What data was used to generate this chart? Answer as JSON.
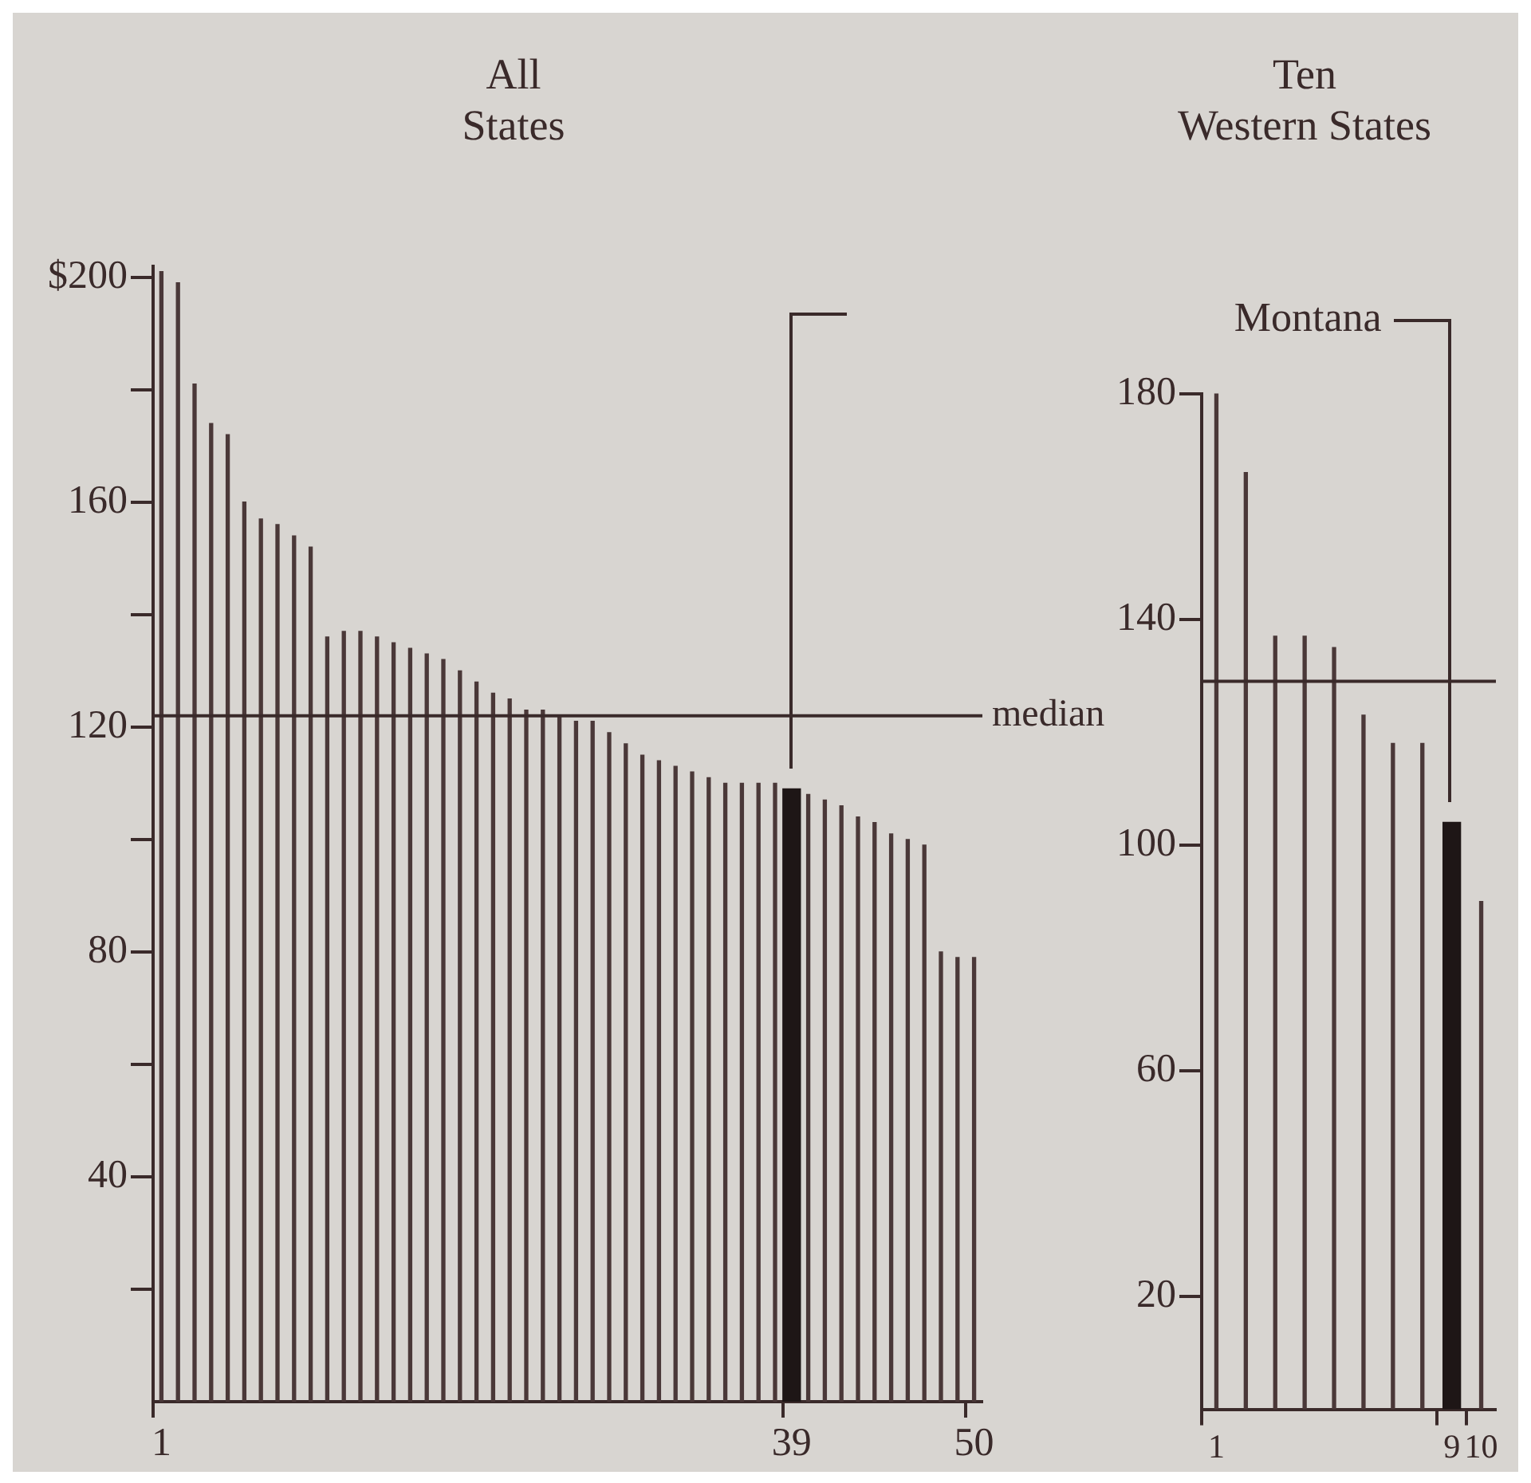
{
  "chart_data": [
    {
      "type": "bar",
      "title": "All\nStates",
      "categories": [
        "1",
        null,
        null,
        null,
        null,
        null,
        null,
        null,
        null,
        null,
        null,
        null,
        null,
        null,
        null,
        null,
        null,
        null,
        null,
        null,
        null,
        null,
        null,
        null,
        null,
        null,
        null,
        null,
        null,
        null,
        null,
        null,
        null,
        null,
        null,
        null,
        null,
        null,
        "39",
        null,
        null,
        null,
        null,
        null,
        null,
        null,
        null,
        null,
        null,
        "50"
      ],
      "values": [
        201,
        199,
        181,
        174,
        172,
        160,
        157,
        156,
        154,
        152,
        136,
        137,
        137,
        136,
        135,
        134,
        133,
        132,
        130,
        128,
        126,
        125,
        123,
        123,
        122,
        121,
        121,
        119,
        117,
        115,
        114,
        113,
        112,
        111,
        110,
        110,
        110,
        110,
        109,
        108,
        107,
        106,
        104,
        103,
        101,
        100,
        99,
        80,
        79,
        79
      ],
      "color": "#4a3838",
      "colors": [
        "#4a3838",
        "#4a3838",
        "#4a3838",
        "#4a3838",
        "#4a3838",
        "#4a3838",
        "#4a3838",
        "#4a3838",
        "#4a3838",
        "#4a3838",
        "#4a3838",
        "#4a3838",
        "#4a3838",
        "#4a3838",
        "#4a3838",
        "#4a3838",
        "#4a3838",
        "#4a3838",
        "#4a3838",
        "#4a3838",
        "#4a3838",
        "#4a3838",
        "#4a3838",
        "#4a3838",
        "#4a3838",
        "#4a3838",
        "#4a3838",
        "#4a3838",
        "#4a3838",
        "#4a3838",
        "#4a3838",
        "#4a3838",
        "#4a3838",
        "#4a3838",
        "#4a3838",
        "#4a3838",
        "#4a3838",
        "#4a3838",
        "#1e1616",
        "#4a3838",
        "#4a3838",
        "#4a3838",
        "#4a3838",
        "#4a3838",
        "#4a3838",
        "#4a3838",
        "#4a3838",
        "#4a3838",
        "#4a3838",
        "#4a3838"
      ],
      "ylim": [
        0,
        202
      ],
      "yticks": [
        {
          "value": 20,
          "label": null
        },
        40,
        {
          "value": 60,
          "label": null
        },
        80,
        {
          "value": 100,
          "label": null
        },
        120,
        {
          "value": 140,
          "label": null
        },
        160,
        {
          "value": 180,
          "label": null
        },
        {
          "value": 200,
          "label": "$200"
        }
      ],
      "ref_lines": [
        {
          "axis": "y",
          "value": 122,
          "label": "median"
        }
      ]
    },
    {
      "type": "bar",
      "title": "Ten\nWestern States",
      "categories": [
        "1",
        null,
        null,
        null,
        null,
        null,
        null,
        null,
        "9",
        "10"
      ],
      "values": [
        180,
        166,
        137,
        137,
        135,
        123,
        118,
        118,
        104,
        90
      ],
      "color": "#4a3838",
      "colors": [
        "#4a3838",
        "#4a3838",
        "#4a3838",
        "#4a3838",
        "#4a3838",
        "#4a3838",
        "#4a3838",
        "#4a3838",
        "#1e1616",
        "#4a3838"
      ],
      "ylim": [
        0,
        180
      ],
      "yticks": [
        20,
        60,
        100,
        140,
        180
      ],
      "ref_lines": [
        {
          "axis": "y",
          "value": 129,
          "label": null
        }
      ],
      "annotations": [
        "Montana"
      ]
    }
  ]
}
